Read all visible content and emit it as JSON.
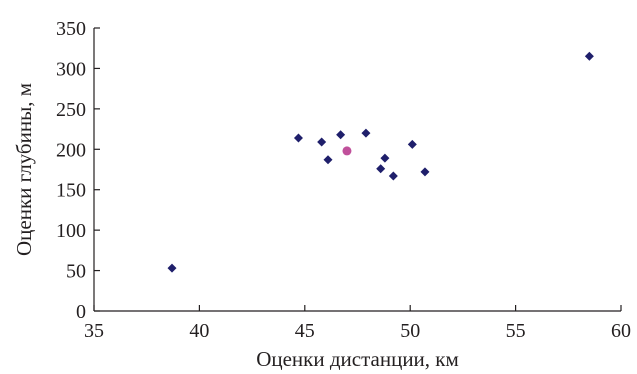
{
  "chart_data": {
    "type": "scatter",
    "title": "",
    "xlabel": "Оценки дистанции, км",
    "ylabel": "Оценки глубины, м",
    "xlim": [
      35,
      60
    ],
    "ylim": [
      0,
      350
    ],
    "xticks": [
      35,
      40,
      45,
      50,
      55,
      60
    ],
    "yticks": [
      0,
      50,
      100,
      150,
      200,
      250,
      300,
      350
    ],
    "grid": false,
    "legend": "none",
    "series": [
      {
        "marker": "diamond",
        "color": "#1f1f6b",
        "points": [
          {
            "x": 38.7,
            "y": 53
          },
          {
            "x": 44.7,
            "y": 214
          },
          {
            "x": 45.8,
            "y": 209
          },
          {
            "x": 46.1,
            "y": 187
          },
          {
            "x": 46.7,
            "y": 218
          },
          {
            "x": 47.9,
            "y": 220
          },
          {
            "x": 48.6,
            "y": 176
          },
          {
            "x": 48.8,
            "y": 189
          },
          {
            "x": 49.2,
            "y": 167
          },
          {
            "x": 50.1,
            "y": 206
          },
          {
            "x": 50.7,
            "y": 172
          },
          {
            "x": 58.5,
            "y": 315
          }
        ]
      },
      {
        "marker": "circle",
        "color": "#c0509b",
        "points": [
          {
            "x": 47.0,
            "y": 198
          }
        ]
      }
    ]
  }
}
